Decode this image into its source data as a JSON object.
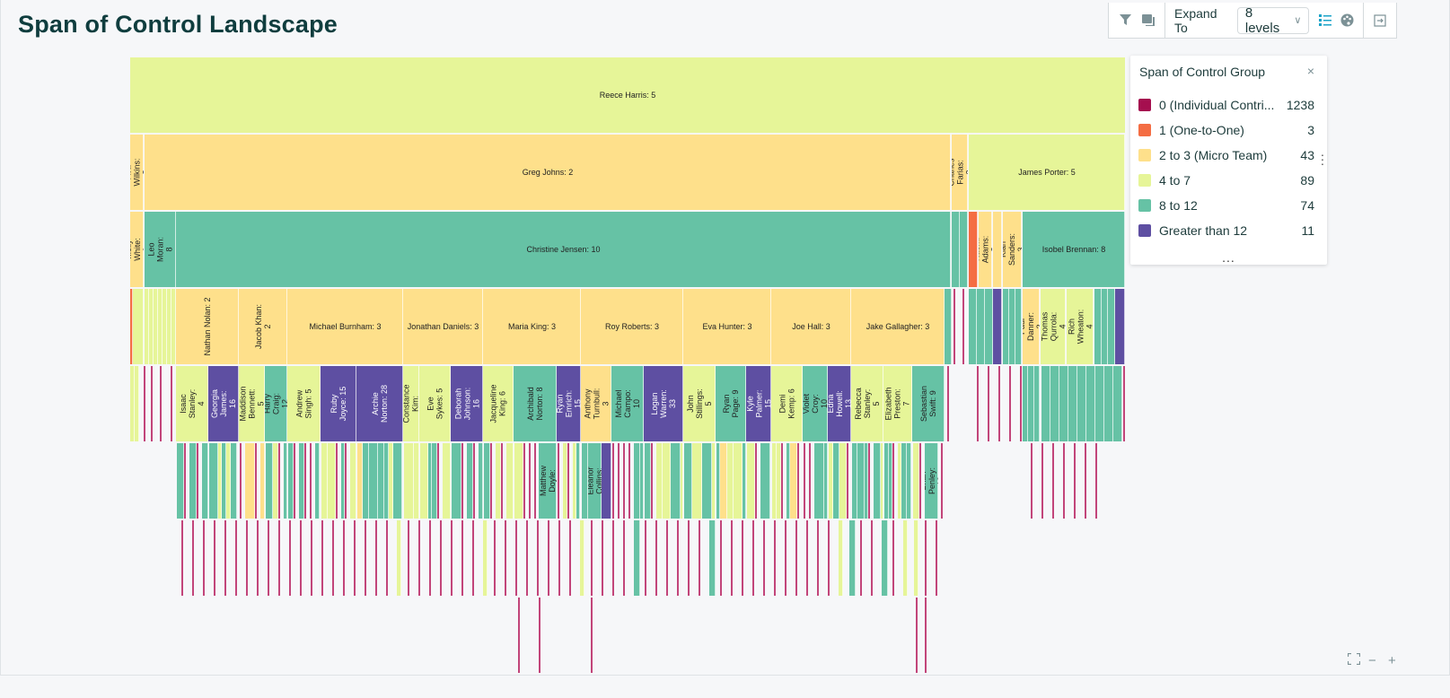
{
  "page": {
    "title": "Span of Control Landscape"
  },
  "toolbar": {
    "filter_icon": "filter-icon",
    "comment_icon": "comments-icon",
    "expand_label": "Expand To",
    "expand_value": "8 levels",
    "list_icon": "list-icon",
    "palette_icon": "palette-icon",
    "export_icon": "export-icon"
  },
  "legend": {
    "title": "Span of Control Group",
    "close": "×",
    "more": "...",
    "items": [
      {
        "label": "0 (Individual Contri...",
        "count": "1238",
        "color": "#a50f4f"
      },
      {
        "label": "1 (One-to-One)",
        "count": "3",
        "color": "#f46d43"
      },
      {
        "label": "2 to 3 (Micro Team)",
        "count": "43",
        "color": "#fee08b"
      },
      {
        "label": "4 to 7",
        "count": "89",
        "color": "#e6f598"
      },
      {
        "label": "8 to 12",
        "count": "74",
        "color": "#66c2a5"
      },
      {
        "label": "Greater than 12",
        "count": "11",
        "color": "#5e4fa2"
      }
    ]
  },
  "chart_data": {
    "type": "icicle",
    "levels": 8,
    "nodes": [
      {
        "label": "Reece Harris: 5",
        "group": 3,
        "level": 0
      },
      {
        "label": "Ava Wilkins: 2",
        "group": 2,
        "level": 1
      },
      {
        "label": "Greg Johns: 2",
        "group": 2,
        "level": 1
      },
      {
        "label": "Charles Farias: 3",
        "group": 2,
        "level": 1
      },
      {
        "label": "James Porter: 5",
        "group": 3,
        "level": 1
      },
      {
        "label": "Molly White: 3",
        "group": 2,
        "level": 2
      },
      {
        "label": "Leo Moran: 8",
        "group": 4,
        "level": 2
      },
      {
        "label": "Christine Jensen: 10",
        "group": 4,
        "level": 2
      },
      {
        "label": "Naomi Adams: 2",
        "group": 2,
        "level": 2
      },
      {
        "label": "Kian Sanders: 3",
        "group": 2,
        "level": 2
      },
      {
        "label": "Isobel Brennan: 8",
        "group": 4,
        "level": 2
      },
      {
        "label": "Nathan Nolan: 2",
        "group": 2,
        "level": 3
      },
      {
        "label": "Jacob Khan: 2",
        "group": 2,
        "level": 3
      },
      {
        "label": "Michael Burnham: 3",
        "group": 2,
        "level": 3
      },
      {
        "label": "Jonathan Daniels: 3",
        "group": 2,
        "level": 3
      },
      {
        "label": "Maria King: 3",
        "group": 2,
        "level": 3
      },
      {
        "label": "Roy Roberts: 3",
        "group": 2,
        "level": 3
      },
      {
        "label": "Eva Hunter: 3",
        "group": 2,
        "level": 3
      },
      {
        "label": "Joe Hall: 3",
        "group": 2,
        "level": 3
      },
      {
        "label": "Jake Gallagher: 3",
        "group": 2,
        "level": 3
      },
      {
        "label": "Paul Danner: 2",
        "group": 2,
        "level": 3
      },
      {
        "label": "Thomas Qurrola: 4",
        "group": 3,
        "level": 3
      },
      {
        "label": "Rich Wheaton: 4",
        "group": 3,
        "level": 3
      },
      {
        "label": "Isaac Stanley: 4",
        "group": 3,
        "level": 4
      },
      {
        "label": "Georgia James: 16",
        "group": 5,
        "level": 4
      },
      {
        "label": "Maddison Bennett: 5",
        "group": 3,
        "level": 4
      },
      {
        "label": "Harry Craig: 12",
        "group": 4,
        "level": 4
      },
      {
        "label": "Andrew Singh: 5",
        "group": 3,
        "level": 4
      },
      {
        "label": "Ruby Joyce: 15",
        "group": 5,
        "level": 4
      },
      {
        "label": "Archie Norton: 28",
        "group": 5,
        "level": 4
      },
      {
        "label": "Constance Kim:",
        "group": 3,
        "level": 4
      },
      {
        "label": "Eve Sykes: 5",
        "group": 3,
        "level": 4
      },
      {
        "label": "Deborah Johnson: 16",
        "group": 5,
        "level": 4
      },
      {
        "label": "Jacqueline King: 6",
        "group": 3,
        "level": 4
      },
      {
        "label": "Archibald Norton: 8",
        "group": 4,
        "level": 4
      },
      {
        "label": "Ryan Emrich: 15",
        "group": 5,
        "level": 4
      },
      {
        "label": "Anthony Turnbull: 3",
        "group": 2,
        "level": 4
      },
      {
        "label": "Michael Campo: 10",
        "group": 4,
        "level": 4
      },
      {
        "label": "Logan Warren: 33",
        "group": 5,
        "level": 4
      },
      {
        "label": "John Stillings: 5",
        "group": 3,
        "level": 4
      },
      {
        "label": "Ryan Page: 9",
        "group": 4,
        "level": 4
      },
      {
        "label": "Kyle Palmer: 15",
        "group": 5,
        "level": 4
      },
      {
        "label": "Demi Kemp: 6",
        "group": 3,
        "level": 4
      },
      {
        "label": "Violet Croy: 10",
        "group": 4,
        "level": 4
      },
      {
        "label": "Edna Howell: 13",
        "group": 5,
        "level": 4
      },
      {
        "label": "Rebecca Stanley: 5",
        "group": 3,
        "level": 4
      },
      {
        "label": "Elizabeth Preston: 7",
        "group": 3,
        "level": 4
      },
      {
        "label": "Sebastian Swift: 9",
        "group": 4,
        "level": 4
      },
      {
        "label": "Matthew Doyle:",
        "group": 4,
        "level": 5
      },
      {
        "label": "Eleanor Collins:",
        "group": 4,
        "level": 5
      },
      {
        "label": "Brian Penley: 10",
        "group": 4,
        "level": 5
      }
    ]
  },
  "controls": {
    "fit_icon": "fit-screen-icon",
    "zoom_out": "−",
    "zoom_in": "+"
  }
}
